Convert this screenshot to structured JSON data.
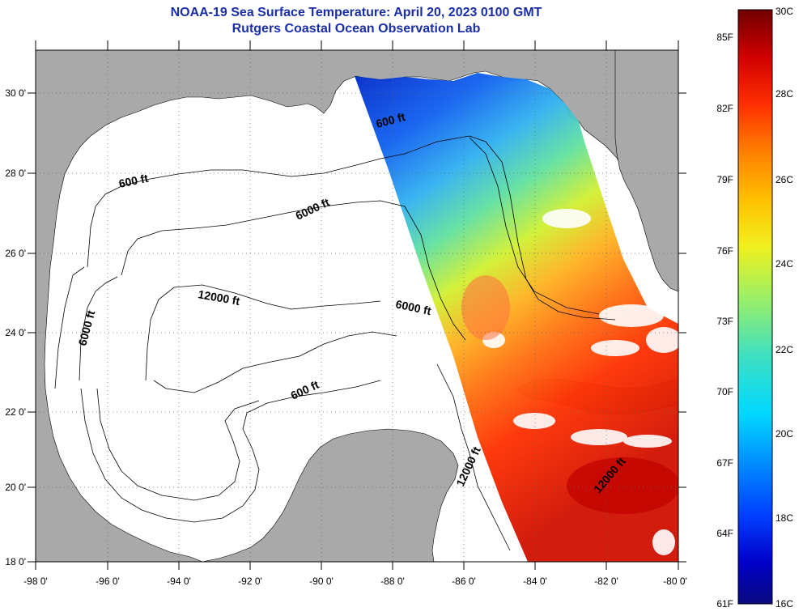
{
  "title": {
    "line1": "NOAA-19 Sea Surface Temperature:  April 20, 2023 0100 GMT",
    "line2": "Rutgers Coastal Ocean Observation Lab"
  },
  "map": {
    "lon_range": [
      -98,
      -80
    ],
    "lat_range": [
      18,
      31
    ],
    "lon_ticks": [
      "-98 0'",
      "-96 0'",
      "-94 0'",
      "-92 0'",
      "-90 0'",
      "-88 0'",
      "-86 0'",
      "-84 0'",
      "-82 0'",
      "-80 0'"
    ],
    "lat_ticks": [
      "18 0'",
      "20 0'",
      "22 0'",
      "24 0'",
      "26 0'",
      "28 0'",
      "30 0'"
    ],
    "contour_labels": [
      "600 ft",
      "6000 ft",
      "12000 ft",
      "6000 ft",
      "600 ft",
      "6000 ft",
      "600 ft",
      "12000 ft",
      "12000 ft"
    ],
    "land_color": "#a9a9a9",
    "nodata_color": "#ffffff"
  },
  "colorbar": {
    "fahrenheit": [
      "85F",
      "82F",
      "79F",
      "76F",
      "73F",
      "70F",
      "67F",
      "64F",
      "61F"
    ],
    "celsius": [
      "30C",
      "28C",
      "26C",
      "24C",
      "22C",
      "20C",
      "18C",
      "16C"
    ],
    "min_c": 16,
    "max_c": 30
  }
}
